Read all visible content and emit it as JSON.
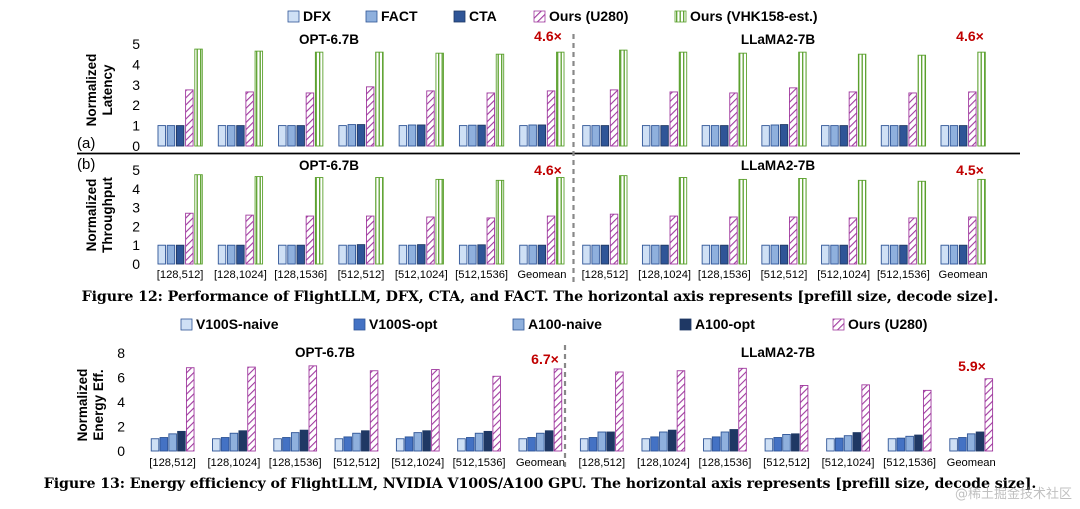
{
  "figure12": {
    "caption": "Figure 12: Performance of FlightLLM, DFX, CTA, and FACT. The horizontal axis represents [prefill size, decode size].",
    "legend": [
      "DFX",
      "FACT",
      "CTA",
      "Ours (U280)",
      "Ours (VHK158-est.)"
    ],
    "panel_a_label": "(a)",
    "panel_b_label": "(b)",
    "latency_ylabel": [
      "Normalized",
      "Latency"
    ],
    "throughput_ylabel": [
      "Normalized",
      "Throughput"
    ],
    "models": [
      "OPT-6.7B",
      "LLaMA2-7B"
    ],
    "latency_annotations": [
      "4.6×",
      "4.6×"
    ],
    "throughput_annotations": [
      "4.6×",
      "4.5×"
    ]
  },
  "figure13": {
    "caption": "Figure 13: Energy efficiency of FlightLLM, NVIDIA V100S/A100 GPU. The horizontal axis represents [prefill size, decode size].",
    "legend": [
      "V100S-naive",
      "V100S-opt",
      "A100-naive",
      "A100-opt",
      "Ours (U280)"
    ],
    "ylabel": [
      "Normalized",
      "Energy Eff."
    ],
    "models": [
      "OPT-6.7B",
      "LLaMA2-7B"
    ],
    "annotations": [
      "6.7×",
      "5.9×"
    ]
  },
  "watermark": "@稀土掘金技术社区",
  "colors": {
    "dfx": "#cfe0f5",
    "fact": "#8fb0dd",
    "cta": "#2f5597",
    "ours_u280": "#a03a9f",
    "ours_vhk": "#5aa02c",
    "annotation": "#c00000",
    "v100s_naive": "#cfe0f5",
    "v100s_opt": "#4472c4",
    "a100_naive": "#8fb0dd",
    "a100_opt": "#1f3864"
  },
  "chart_data": [
    {
      "type": "bar",
      "title": "OPT-6.7B",
      "ylabel": "Normalized Latency",
      "ylim": [
        0,
        5
      ],
      "yticks": [
        0,
        1,
        2,
        3,
        4,
        5
      ],
      "categories": [
        "[128,512]",
        "[128,1024]",
        "[128,1536]",
        "[512,512]",
        "[512,1024]",
        "[512,1536]",
        "Geomean"
      ],
      "series": [
        {
          "name": "DFX",
          "values": [
            1,
            1,
            1,
            1,
            1,
            1,
            1
          ]
        },
        {
          "name": "FACT",
          "values": [
            1,
            1,
            1,
            1.05,
            1.03,
            1.02,
            1.03
          ]
        },
        {
          "name": "CTA",
          "values": [
            1,
            1,
            1,
            1.05,
            1.03,
            1.02,
            1.03
          ]
        },
        {
          "name": "Ours (U280)",
          "values": [
            2.75,
            2.65,
            2.6,
            2.9,
            2.7,
            2.6,
            2.7
          ]
        },
        {
          "name": "Ours (VHK158-est.)",
          "values": [
            4.75,
            4.65,
            4.6,
            4.6,
            4.55,
            4.5,
            4.6
          ]
        }
      ],
      "annotation": "4.6×"
    },
    {
      "type": "bar",
      "title": "LLaMA2-7B",
      "ylabel": "Normalized Latency",
      "ylim": [
        0,
        5
      ],
      "yticks": [
        0,
        1,
        2,
        3,
        4,
        5
      ],
      "categories": [
        "[128,512]",
        "[128,1024]",
        "[128,1536]",
        "[512,512]",
        "[512,1024]",
        "[512,1536]",
        "Geomean"
      ],
      "series": [
        {
          "name": "DFX",
          "values": [
            1,
            1,
            1,
            1,
            1,
            1,
            1
          ]
        },
        {
          "name": "FACT",
          "values": [
            1,
            1,
            1,
            1.03,
            1,
            1,
            1
          ]
        },
        {
          "name": "CTA",
          "values": [
            1,
            1,
            1,
            1.05,
            1,
            1,
            1
          ]
        },
        {
          "name": "Ours (U280)",
          "values": [
            2.75,
            2.65,
            2.6,
            2.85,
            2.65,
            2.6,
            2.65
          ]
        },
        {
          "name": "Ours (VHK158-est.)",
          "values": [
            4.7,
            4.6,
            4.55,
            4.6,
            4.5,
            4.45,
            4.6
          ]
        }
      ],
      "annotation": "4.6×"
    },
    {
      "type": "bar",
      "title": "OPT-6.7B",
      "ylabel": "Normalized Throughput",
      "ylim": [
        0,
        5
      ],
      "yticks": [
        0,
        1,
        2,
        3,
        4,
        5
      ],
      "categories": [
        "[128,512]",
        "[128,1024]",
        "[128,1536]",
        "[512,512]",
        "[512,1024]",
        "[512,1536]",
        "Geomean"
      ],
      "series": [
        {
          "name": "DFX",
          "values": [
            1,
            1,
            1,
            1,
            1,
            1,
            1
          ]
        },
        {
          "name": "FACT",
          "values": [
            1,
            1,
            1,
            1,
            1,
            1,
            1
          ]
        },
        {
          "name": "CTA",
          "values": [
            1,
            1,
            1,
            1.03,
            1.03,
            1.02,
            1
          ]
        },
        {
          "name": "Ours (U280)",
          "values": [
            2.7,
            2.6,
            2.55,
            2.55,
            2.5,
            2.45,
            2.55
          ]
        },
        {
          "name": "Ours (VHK158-est.)",
          "values": [
            4.75,
            4.65,
            4.6,
            4.6,
            4.5,
            4.45,
            4.6
          ]
        }
      ],
      "annotation": "4.6×"
    },
    {
      "type": "bar",
      "title": "LLaMA2-7B",
      "ylabel": "Normalized Throughput",
      "ylim": [
        0,
        5
      ],
      "yticks": [
        0,
        1,
        2,
        3,
        4,
        5
      ],
      "categories": [
        "[128,512]",
        "[128,1024]",
        "[128,1536]",
        "[512,512]",
        "[512,1024]",
        "[512,1536]",
        "Geomean"
      ],
      "series": [
        {
          "name": "DFX",
          "values": [
            1,
            1,
            1,
            1,
            1,
            1,
            1
          ]
        },
        {
          "name": "FACT",
          "values": [
            1,
            1,
            1,
            1,
            1,
            1,
            1
          ]
        },
        {
          "name": "CTA",
          "values": [
            1,
            1,
            1,
            1,
            1,
            1,
            1
          ]
        },
        {
          "name": "Ours (U280)",
          "values": [
            2.65,
            2.55,
            2.5,
            2.5,
            2.45,
            2.45,
            2.5
          ]
        },
        {
          "name": "Ours (VHK158-est.)",
          "values": [
            4.7,
            4.6,
            4.5,
            4.55,
            4.45,
            4.4,
            4.5
          ]
        }
      ],
      "annotation": "4.5×"
    },
    {
      "type": "bar",
      "title": "OPT-6.7B",
      "ylabel": "Normalized Energy Eff.",
      "ylim": [
        0,
        8
      ],
      "yticks": [
        0,
        2,
        4,
        6,
        8
      ],
      "categories": [
        "[128,512]",
        "[128,1024]",
        "[128,1536]",
        "[512,512]",
        "[512,1024]",
        "[512,1536]",
        "Geomean"
      ],
      "series": [
        {
          "name": "V100S-naive",
          "values": [
            1,
            1,
            1,
            1,
            1,
            1,
            1
          ]
        },
        {
          "name": "V100S-opt",
          "values": [
            1.1,
            1.1,
            1.1,
            1.15,
            1.15,
            1.1,
            1.1
          ]
        },
        {
          "name": "A100-naive",
          "values": [
            1.4,
            1.45,
            1.5,
            1.45,
            1.5,
            1.45,
            1.45
          ]
        },
        {
          "name": "A100-opt",
          "values": [
            1.6,
            1.65,
            1.7,
            1.65,
            1.65,
            1.6,
            1.65
          ]
        },
        {
          "name": "Ours (U280)",
          "values": [
            6.8,
            6.85,
            6.95,
            6.55,
            6.65,
            6.1,
            6.7
          ]
        }
      ],
      "annotation": "6.7×"
    },
    {
      "type": "bar",
      "title": "LLaMA2-7B",
      "ylabel": "Normalized Energy Eff.",
      "ylim": [
        0,
        8
      ],
      "yticks": [
        0,
        2,
        4,
        6,
        8
      ],
      "categories": [
        "[128,512]",
        "[128,1024]",
        "[128,1536]",
        "[512,512]",
        "[512,1024]",
        "[512,1536]",
        "Geomean"
      ],
      "series": [
        {
          "name": "V100S-naive",
          "values": [
            1,
            1,
            1,
            1,
            1,
            1,
            1
          ]
        },
        {
          "name": "V100S-opt",
          "values": [
            1.1,
            1.15,
            1.15,
            1.1,
            1.05,
            1.05,
            1.1
          ]
        },
        {
          "name": "A100-naive",
          "values": [
            1.55,
            1.55,
            1.55,
            1.35,
            1.25,
            1.2,
            1.4
          ]
        },
        {
          "name": "A100-opt",
          "values": [
            1.55,
            1.7,
            1.75,
            1.4,
            1.5,
            1.3,
            1.55
          ]
        },
        {
          "name": "Ours (U280)",
          "values": [
            6.45,
            6.55,
            6.75,
            5.35,
            5.4,
            4.95,
            5.9
          ]
        }
      ],
      "annotation": "5.9×"
    }
  ]
}
